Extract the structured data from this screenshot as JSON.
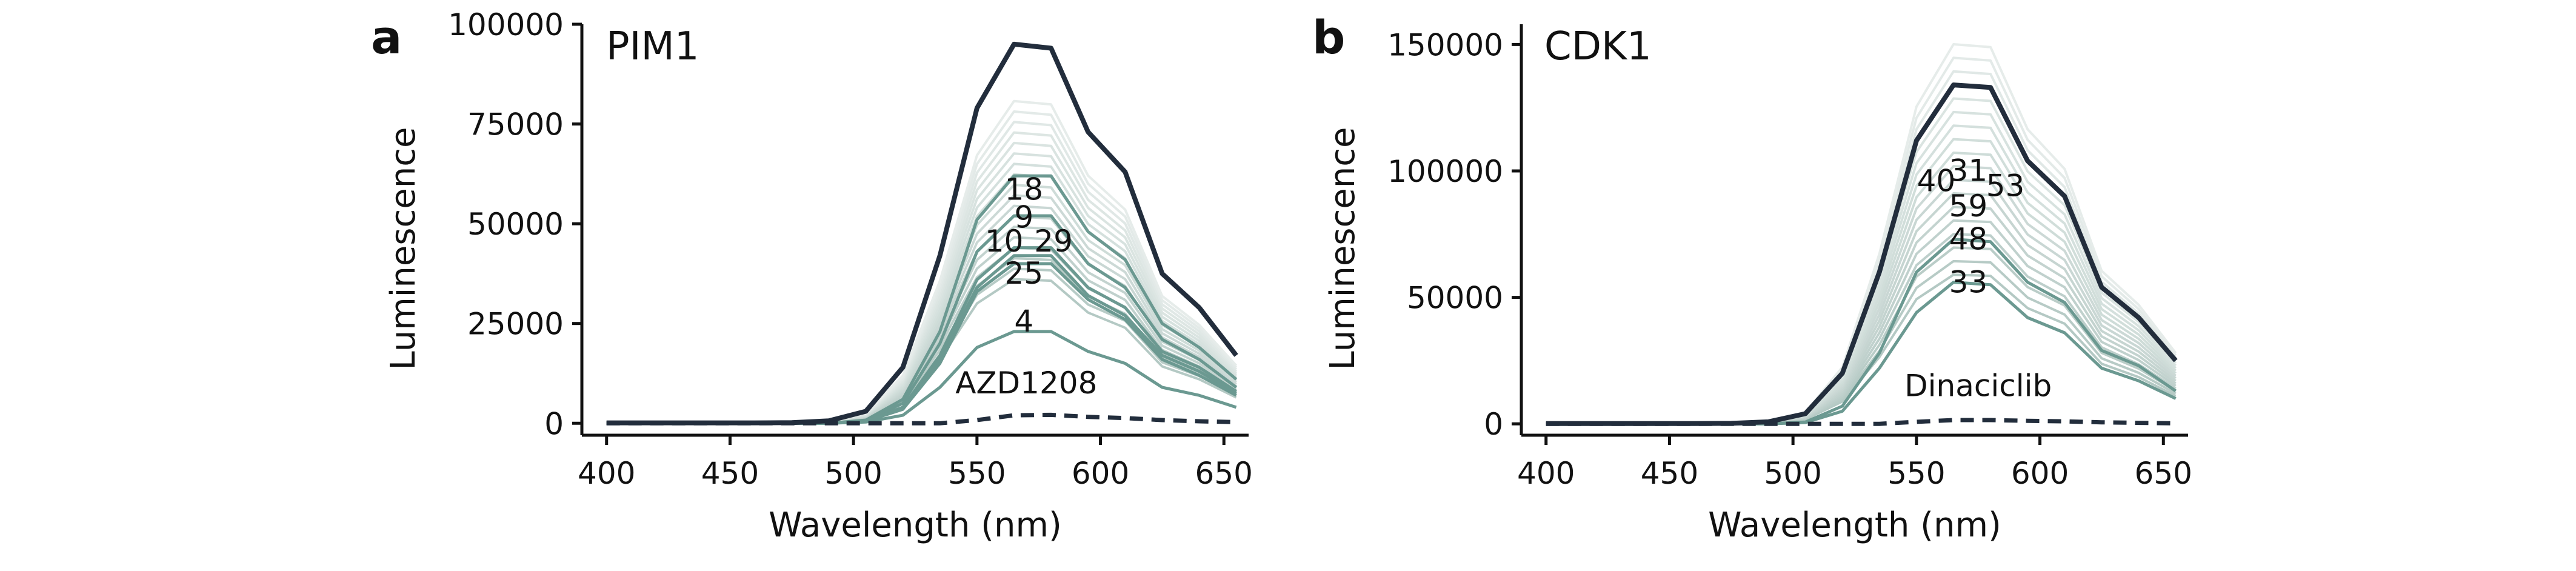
{
  "chart_data": [
    {
      "panel_label": "a",
      "type": "line",
      "title": "PIM1",
      "xlabel": "Wavelength (nm)",
      "ylabel": "Luminescence",
      "xlim": [
        390,
        660
      ],
      "ylim": [
        -3000,
        100000
      ],
      "xticks": [
        400,
        450,
        500,
        550,
        600,
        650
      ],
      "yticks": [
        0,
        25000,
        50000,
        75000,
        100000
      ],
      "ytick_labels": [
        "0",
        "25000",
        "50000",
        "75000",
        "100000"
      ],
      "grid": false,
      "x": [
        400,
        415,
        430,
        445,
        460,
        475,
        490,
        505,
        520,
        535,
        550,
        565,
        580,
        595,
        610,
        625,
        640,
        655
      ],
      "control": {
        "values": [
          100,
          100,
          100,
          100,
          100,
          150,
          600,
          3000,
          14000,
          42000,
          79000,
          95000,
          94000,
          73000,
          63000,
          37500,
          29000,
          17000
        ],
        "color": "#222d3c"
      },
      "inhibitor": {
        "values": [
          0,
          0,
          0,
          0,
          0,
          0,
          0,
          0,
          0,
          0,
          800,
          2000,
          2100,
          1600,
          1300,
          800,
          500,
          300
        ],
        "color": "#222d3c",
        "dashed": true
      },
      "compound_series": [
        {
          "values": [
            0,
            0,
            0,
            0,
            0,
            0,
            0,
            800,
            6000,
            23000,
            51000,
            62000,
            62000,
            48000,
            41000,
            25000,
            19000,
            11000
          ],
          "color": "#6b9991"
        },
        {
          "values": [
            0,
            0,
            0,
            0,
            0,
            0,
            0,
            700,
            5000,
            20000,
            43000,
            52000,
            52000,
            40000,
            34000,
            21000,
            16000,
            9000
          ],
          "color": "#6b9991"
        },
        {
          "values": [
            0,
            0,
            0,
            0,
            0,
            0,
            0,
            600,
            4000,
            17000,
            36000,
            44000,
            44000,
            34000,
            29000,
            18000,
            14000,
            8000
          ],
          "color": "#6b9991"
        },
        {
          "values": [
            0,
            0,
            0,
            0,
            0,
            0,
            0,
            550,
            3800,
            16000,
            34000,
            42000,
            42000,
            32000,
            27000,
            17000,
            13000,
            7500
          ],
          "color": "#6b9991"
        },
        {
          "values": [
            0,
            0,
            0,
            0,
            0,
            0,
            0,
            500,
            3500,
            15000,
            33000,
            40000,
            40000,
            31000,
            26000,
            16000,
            12000,
            7000
          ],
          "color": "#6b9991"
        },
        {
          "values": [
            0,
            0,
            0,
            0,
            0,
            0,
            0,
            300,
            2000,
            9000,
            19000,
            23000,
            23000,
            18000,
            15000,
            9000,
            7000,
            4000
          ],
          "color": "#6b9991"
        }
      ],
      "annotations": [
        {
          "text": "18",
          "x": 569,
          "y": 56000
        },
        {
          "text": "9",
          "x": 569,
          "y": 49000
        },
        {
          "text": "10",
          "x": 561,
          "y": 43000
        },
        {
          "text": "29",
          "x": 581,
          "y": 43000
        },
        {
          "text": "25",
          "x": 569,
          "y": 35000
        },
        {
          "text": "4",
          "x": 569,
          "y": 23000
        },
        {
          "text": "AZD1208",
          "x": 570,
          "y": 7500
        }
      ]
    },
    {
      "panel_label": "b",
      "type": "line",
      "title": "CDK1",
      "xlabel": "Wavelength (nm)",
      "ylabel": "Luminescence",
      "xlim": [
        390,
        660
      ],
      "ylim": [
        -4500,
        158000
      ],
      "xticks": [
        400,
        450,
        500,
        550,
        600,
        650
      ],
      "yticks": [
        0,
        50000,
        100000,
        150000
      ],
      "ytick_labels": [
        "0",
        "50000",
        "100000",
        "150000"
      ],
      "grid": false,
      "x": [
        400,
        415,
        430,
        445,
        460,
        475,
        490,
        505,
        520,
        535,
        550,
        565,
        580,
        595,
        610,
        625,
        640,
        655
      ],
      "control": {
        "values": [
          100,
          100,
          100,
          100,
          100,
          200,
          800,
          4000,
          20000,
          60000,
          112000,
          134000,
          133000,
          104000,
          90000,
          54000,
          42000,
          25000
        ],
        "color": "#222d3c"
      },
      "inhibitor": {
        "values": [
          0,
          0,
          0,
          0,
          0,
          0,
          0,
          0,
          0,
          0,
          800,
          1500,
          1500,
          1200,
          1000,
          600,
          400,
          200
        ],
        "color": "#222d3c",
        "dashed": true
      },
      "compound_series": [
        {
          "values": [
            0,
            0,
            0,
            0,
            0,
            0,
            0,
            700,
            7000,
            28000,
            60000,
            73000,
            72000,
            56000,
            48000,
            29000,
            23000,
            13000
          ],
          "color": "#6b9991"
        },
        {
          "values": [
            0,
            0,
            0,
            0,
            0,
            0,
            0,
            500,
            5000,
            22000,
            44000,
            56000,
            55000,
            42000,
            36000,
            22000,
            17000,
            10000
          ],
          "color": "#6b9991"
        }
      ],
      "annotations": [
        {
          "text": "40",
          "x": 558,
          "y": 92000
        },
        {
          "text": "31",
          "x": 571,
          "y": 96000
        },
        {
          "text": "53",
          "x": 586,
          "y": 90000
        },
        {
          "text": "59",
          "x": 571,
          "y": 82000
        },
        {
          "text": "48",
          "x": 571,
          "y": 69000
        },
        {
          "text": "33",
          "x": 571,
          "y": 52000
        },
        {
          "text": "Dinaciclib",
          "x": 575,
          "y": 11000
        }
      ]
    }
  ]
}
